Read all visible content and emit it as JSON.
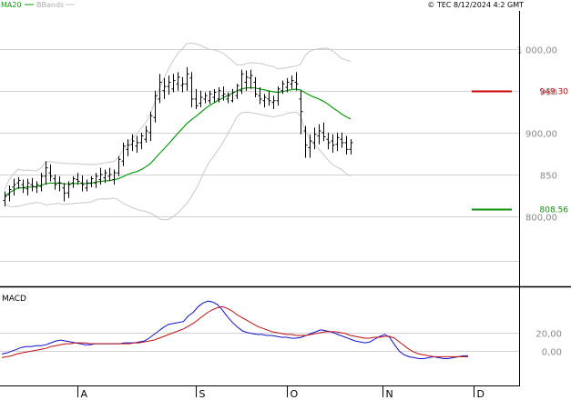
{
  "header": {
    "ma_label": "MA20",
    "bb_label": "BBands",
    "source": "© TEC 8/12/2024 4:2 GMT"
  },
  "colors": {
    "price": "#000000",
    "ma": "#0f9b0f",
    "bands": "#c8c8c8",
    "grid": "#d2d2d2",
    "resistance": "#cc0000",
    "support": "#109010",
    "macd": "#1010cc",
    "signal": "#c01010"
  },
  "chart_data": [
    {
      "type": "ohlc",
      "title": "",
      "x_ticks": [
        "A",
        "S",
        "O",
        "N",
        "D"
      ],
      "x_tick_days": [
        16,
        42,
        62,
        83,
        103
      ],
      "ylim": [
        720,
        1045
      ],
      "y_tick_values": [
        1000,
        950,
        900,
        850,
        800
      ],
      "y_tick_labels": [
        "1 000,00",
        "950",
        "900,00",
        "850",
        "800,00"
      ],
      "levels": [
        {
          "name": "resistance",
          "value": 949.3,
          "label": "949.30"
        },
        {
          "name": "support",
          "value": 808.56,
          "label": "808.56"
        }
      ],
      "ohlc": [
        [
          819,
          830,
          812,
          824
        ],
        [
          826,
          837,
          818,
          832
        ],
        [
          835,
          845,
          825,
          838
        ],
        [
          840,
          847,
          833,
          843
        ],
        [
          838,
          844,
          828,
          834
        ],
        [
          833,
          845,
          825,
          840
        ],
        [
          838,
          846,
          830,
          836
        ],
        [
          835,
          842,
          828,
          838
        ],
        [
          836,
          852,
          830,
          848
        ],
        [
          848,
          866,
          838,
          858
        ],
        [
          852,
          862,
          842,
          848
        ],
        [
          845,
          850,
          832,
          838
        ],
        [
          840,
          848,
          830,
          840
        ],
        [
          834,
          840,
          818,
          828
        ],
        [
          828,
          842,
          822,
          838
        ],
        [
          840,
          848,
          834,
          845
        ],
        [
          844,
          852,
          838,
          842
        ],
        [
          840,
          849,
          830,
          838
        ],
        [
          834,
          844,
          830,
          840
        ],
        [
          840,
          848,
          835,
          845
        ],
        [
          840,
          852,
          834,
          848
        ],
        [
          844,
          858,
          838,
          850
        ],
        [
          846,
          856,
          840,
          852
        ],
        [
          848,
          858,
          842,
          850
        ],
        [
          844,
          856,
          838,
          852
        ],
        [
          852,
          872,
          848,
          868
        ],
        [
          866,
          888,
          860,
          884
        ],
        [
          880,
          892,
          872,
          885
        ],
        [
          886,
          898,
          878,
          890
        ],
        [
          884,
          896,
          876,
          888
        ],
        [
          888,
          900,
          880,
          896
        ],
        [
          892,
          908,
          888,
          902
        ],
        [
          900,
          925,
          890,
          920
        ],
        [
          918,
          950,
          912,
          944
        ],
        [
          940,
          970,
          935,
          960
        ],
        [
          950,
          965,
          940,
          955
        ],
        [
          955,
          968,
          945,
          960
        ],
        [
          952,
          970,
          948,
          962
        ],
        [
          958,
          972,
          950,
          966
        ],
        [
          956,
          966,
          948,
          958
        ],
        [
          958,
          978,
          950,
          970
        ],
        [
          965,
          972,
          930,
          940
        ],
        [
          940,
          952,
          928,
          932
        ],
        [
          935,
          950,
          930,
          942
        ],
        [
          940,
          948,
          935,
          944
        ],
        [
          938,
          950,
          934,
          946
        ],
        [
          942,
          952,
          936,
          948
        ],
        [
          940,
          954,
          936,
          950
        ],
        [
          944,
          955,
          938,
          946
        ],
        [
          940,
          948,
          935,
          944
        ],
        [
          938,
          952,
          936,
          948
        ],
        [
          944,
          958,
          940,
          956
        ],
        [
          950,
          975,
          946,
          970
        ],
        [
          960,
          974,
          950,
          966
        ],
        [
          965,
          975,
          952,
          968
        ],
        [
          960,
          966,
          942,
          946
        ],
        [
          944,
          954,
          934,
          940
        ],
        [
          938,
          946,
          930,
          942
        ],
        [
          940,
          950,
          932,
          938
        ],
        [
          936,
          944,
          928,
          938
        ],
        [
          938,
          955,
          932,
          952
        ],
        [
          950,
          962,
          946,
          958
        ],
        [
          954,
          965,
          948,
          960
        ],
        [
          958,
          968,
          952,
          962
        ],
        [
          960,
          972,
          950,
          958
        ],
        [
          940,
          950,
          898,
          925
        ],
        [
          902,
          908,
          870,
          885
        ],
        [
          882,
          898,
          870,
          890
        ],
        [
          888,
          906,
          880,
          898
        ],
        [
          896,
          910,
          886,
          902
        ],
        [
          900,
          912,
          890,
          895
        ],
        [
          892,
          900,
          880,
          888
        ],
        [
          890,
          898,
          876,
          885
        ],
        [
          886,
          900,
          878,
          894
        ],
        [
          892,
          900,
          882,
          888
        ],
        [
          888,
          896,
          874,
          880
        ],
        [
          880,
          892,
          874,
          888
        ]
      ]
    },
    {
      "type": "line",
      "title": "MACD",
      "ylim": [
        -35,
        65
      ],
      "y_tick_values": [
        20,
        0
      ],
      "y_tick_labels": [
        "20,00",
        "0,00"
      ],
      "series": [
        {
          "name": "macd",
          "values": [
            -3,
            -2,
            0,
            2,
            4,
            5,
            5,
            6,
            6,
            7,
            9,
            11,
            12,
            11,
            10,
            9,
            8,
            7,
            7,
            8,
            8,
            8,
            8,
            8,
            8,
            9,
            9,
            9,
            10,
            11,
            14,
            18,
            22,
            26,
            29,
            30,
            31,
            32,
            38,
            42,
            48,
            52,
            54,
            53,
            50,
            44,
            37,
            31,
            26,
            22,
            20,
            19,
            18,
            18,
            17,
            17,
            16,
            15,
            15,
            14,
            14,
            15,
            17,
            19,
            21,
            23,
            22,
            21,
            19,
            17,
            15,
            13,
            11,
            10,
            9,
            10,
            13,
            16,
            18,
            15,
            7,
            0,
            -4,
            -6,
            -7,
            -8,
            -8,
            -7,
            -6,
            -7,
            -8,
            -8,
            -7,
            -6,
            -5,
            -5
          ]
        },
        {
          "name": "signal",
          "values": [
            -7,
            -6,
            -5,
            -3,
            -2,
            -1,
            0,
            1,
            2,
            3,
            5,
            6,
            7,
            8,
            8,
            9,
            9,
            9,
            8,
            8,
            8,
            8,
            8,
            8,
            8,
            8,
            8,
            9,
            9,
            10,
            11,
            12,
            14,
            16,
            18,
            20,
            22,
            24,
            27,
            30,
            34,
            38,
            42,
            45,
            47,
            48,
            46,
            43,
            39,
            36,
            33,
            30,
            27,
            25,
            23,
            21,
            20,
            19,
            18,
            18,
            17,
            17,
            17,
            18,
            19,
            20,
            21,
            21,
            21,
            20,
            19,
            17,
            16,
            15,
            14,
            14,
            15,
            15,
            16,
            16,
            14,
            10,
            6,
            2,
            -1,
            -3,
            -4,
            -5,
            -6,
            -6,
            -6,
            -6,
            -6,
            -6,
            -6,
            -6
          ]
        }
      ]
    }
  ]
}
